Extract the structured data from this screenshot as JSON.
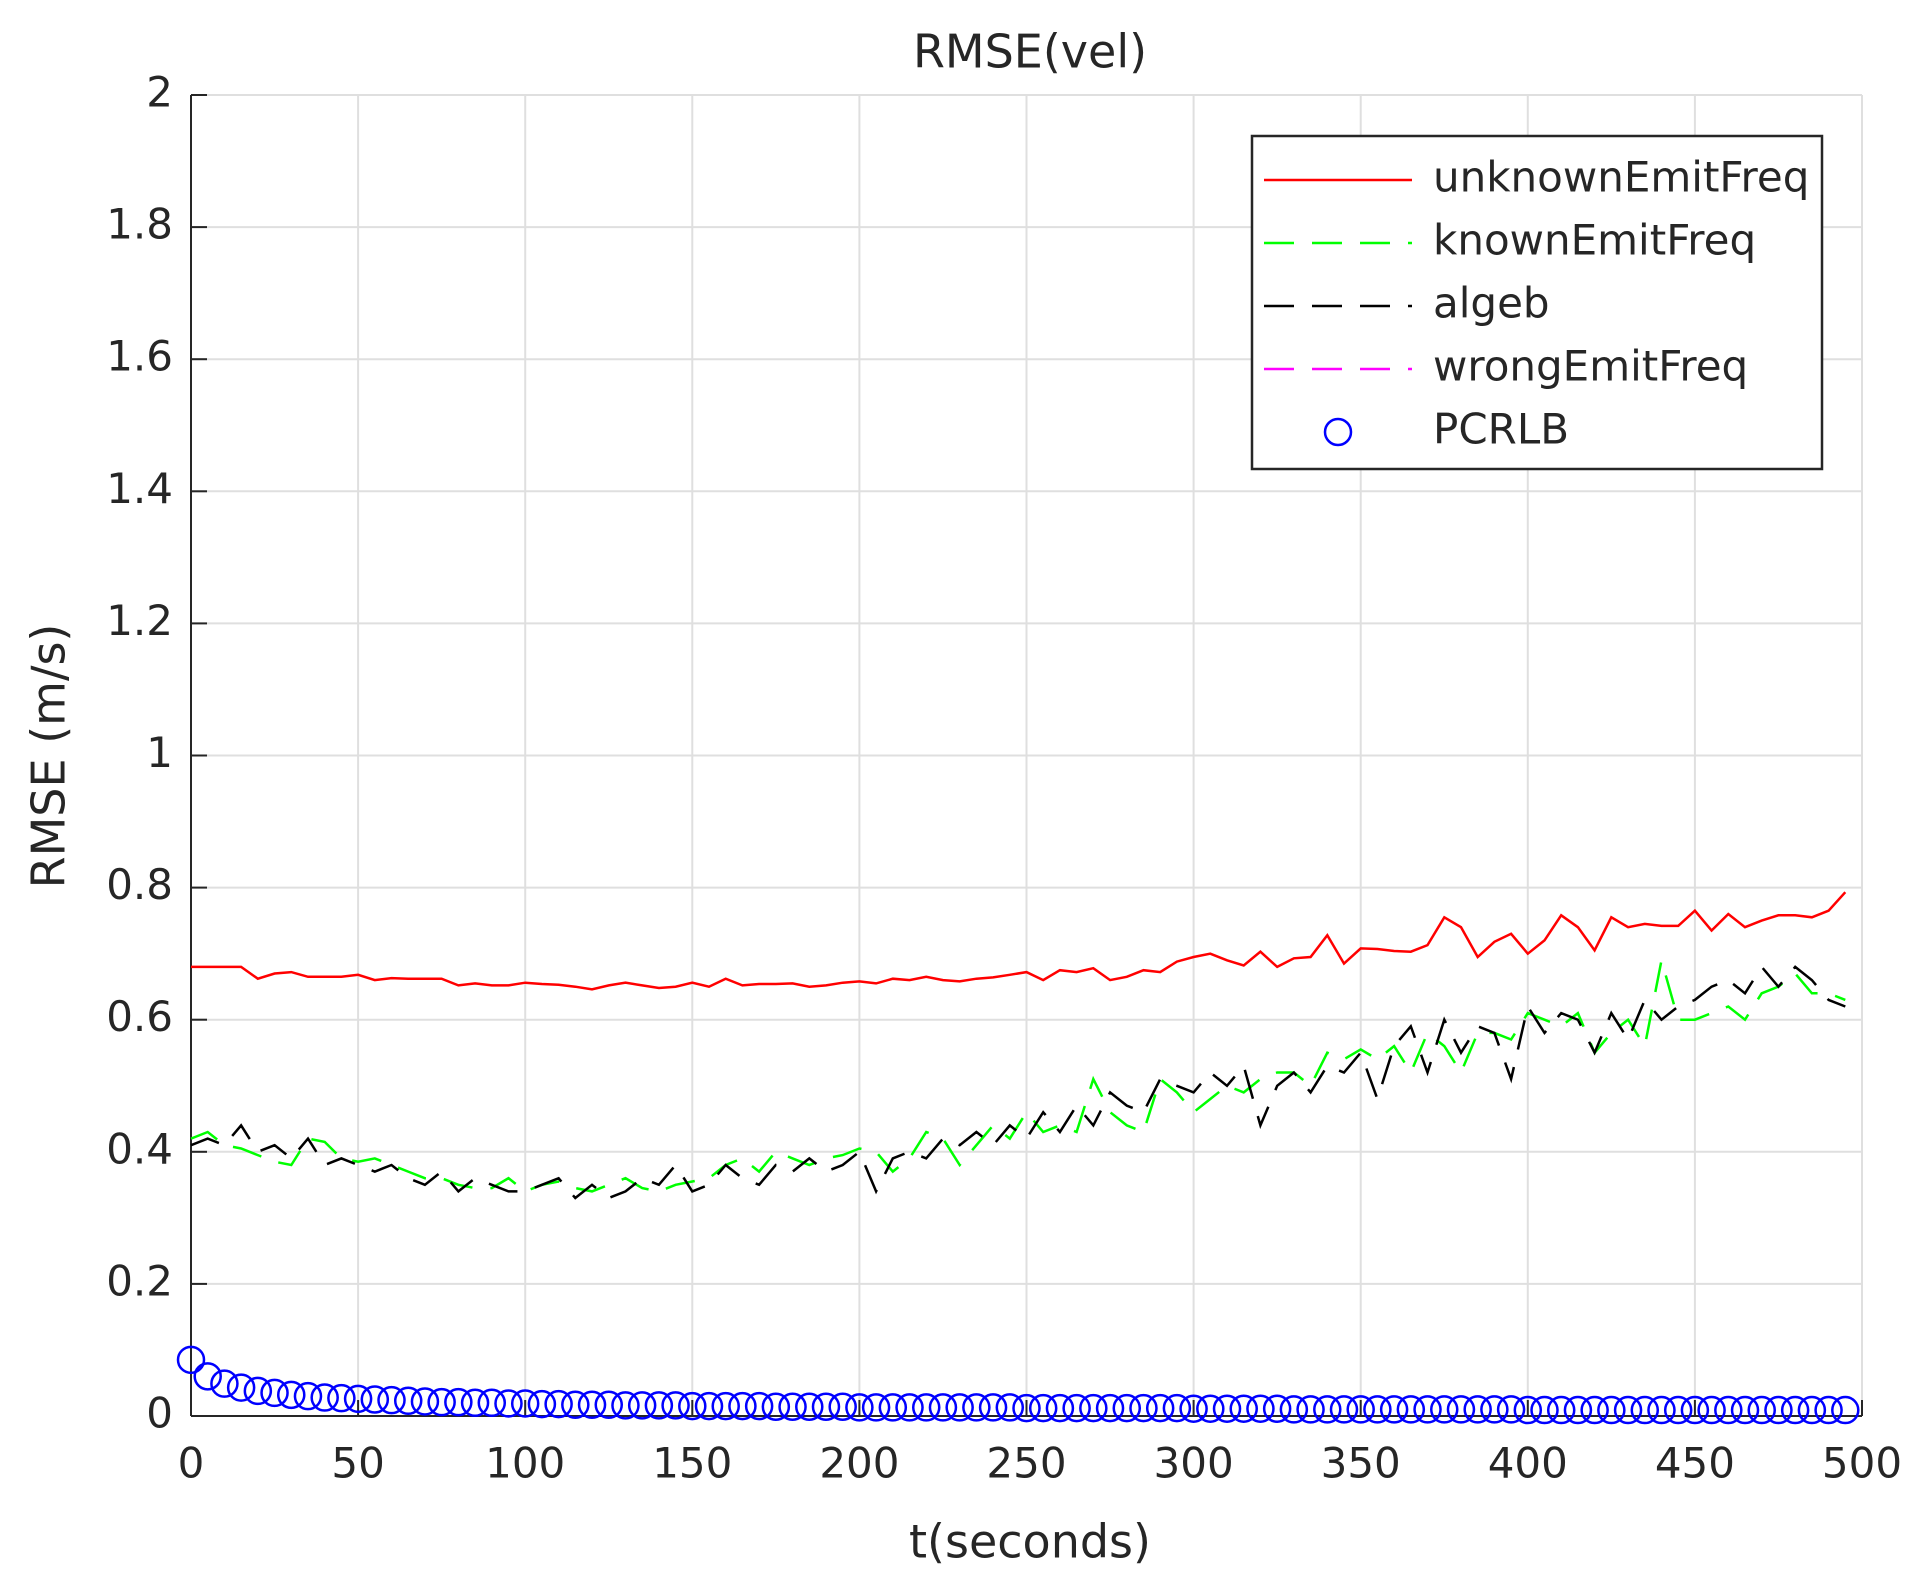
{
  "chart_data": {
    "type": "line",
    "title": "RMSE(vel)",
    "xlabel": "t(seconds)",
    "ylabel": "RMSE (m/s)",
    "x": [
      0,
      5,
      10,
      15,
      20,
      25,
      30,
      35,
      40,
      45,
      50,
      55,
      60,
      65,
      70,
      75,
      80,
      85,
      90,
      95,
      100,
      105,
      110,
      115,
      120,
      125,
      130,
      135,
      140,
      145,
      150,
      155,
      160,
      165,
      170,
      175,
      180,
      185,
      190,
      195,
      200,
      205,
      210,
      215,
      220,
      225,
      230,
      235,
      240,
      245,
      250,
      255,
      260,
      265,
      270,
      275,
      280,
      285,
      290,
      295,
      300,
      305,
      310,
      315,
      320,
      325,
      330,
      335,
      340,
      345,
      350,
      355,
      360,
      365,
      370,
      375,
      380,
      385,
      390,
      395,
      400,
      405,
      410,
      415,
      420,
      425,
      430,
      435,
      440,
      445,
      450,
      455,
      460,
      465,
      470,
      475,
      480,
      485,
      490,
      495
    ],
    "series": [
      {
        "name": "unknownEmitFreq",
        "color": "#ff0000",
        "linestyle": "solid",
        "values": [
          0.68,
          0.68,
          0.68,
          0.68,
          0.662,
          0.67,
          0.672,
          0.665,
          0.665,
          0.665,
          0.668,
          0.66,
          0.663,
          0.662,
          0.662,
          0.662,
          0.652,
          0.655,
          0.652,
          0.652,
          0.656,
          0.654,
          0.653,
          0.65,
          0.646,
          0.652,
          0.656,
          0.652,
          0.648,
          0.65,
          0.656,
          0.65,
          0.662,
          0.652,
          0.654,
          0.654,
          0.655,
          0.65,
          0.652,
          0.656,
          0.658,
          0.655,
          0.662,
          0.66,
          0.665,
          0.66,
          0.658,
          0.662,
          0.664,
          0.668,
          0.672,
          0.66,
          0.675,
          0.672,
          0.678,
          0.66,
          0.665,
          0.675,
          0.672,
          0.688,
          0.695,
          0.7,
          0.69,
          0.682,
          0.703,
          0.68,
          0.693,
          0.695,
          0.728,
          0.685,
          0.708,
          0.707,
          0.704,
          0.703,
          0.713,
          0.755,
          0.74,
          0.695,
          0.718,
          0.73,
          0.7,
          0.72,
          0.758,
          0.74,
          0.705,
          0.755,
          0.74,
          0.745,
          0.742,
          0.742,
          0.765,
          0.735,
          0.76,
          0.74,
          0.75,
          0.758,
          0.758,
          0.755,
          0.765,
          0.793
        ]
      },
      {
        "name": "knownEmitFreq",
        "color": "#00ff00",
        "linestyle": "dashed",
        "values": [
          0.42,
          0.43,
          0.41,
          0.405,
          0.395,
          0.385,
          0.38,
          0.42,
          0.415,
          0.39,
          0.385,
          0.39,
          0.38,
          0.37,
          0.36,
          0.36,
          0.35,
          0.345,
          0.345,
          0.36,
          0.34,
          0.35,
          0.355,
          0.345,
          0.34,
          0.35,
          0.36,
          0.345,
          0.34,
          0.35,
          0.355,
          0.36,
          0.38,
          0.39,
          0.37,
          0.4,
          0.39,
          0.38,
          0.39,
          0.395,
          0.405,
          0.4,
          0.37,
          0.39,
          0.43,
          0.42,
          0.38,
          0.41,
          0.44,
          0.42,
          0.46,
          0.43,
          0.44,
          0.43,
          0.51,
          0.46,
          0.44,
          0.43,
          0.51,
          0.49,
          0.46,
          0.48,
          0.5,
          0.49,
          0.51,
          0.52,
          0.52,
          0.5,
          0.55,
          0.54,
          0.555,
          0.54,
          0.56,
          0.52,
          0.58,
          0.56,
          0.52,
          0.58,
          0.58,
          0.57,
          0.61,
          0.6,
          0.59,
          0.61,
          0.55,
          0.58,
          0.6,
          0.56,
          0.69,
          0.6,
          0.6,
          0.61,
          0.62,
          0.6,
          0.64,
          0.65,
          0.67,
          0.64,
          0.64,
          0.63
        ]
      },
      {
        "name": "algeb",
        "color": "#000000",
        "linestyle": "dashed",
        "values": [
          0.41,
          0.42,
          0.41,
          0.44,
          0.4,
          0.41,
          0.39,
          0.42,
          0.38,
          0.39,
          0.38,
          0.37,
          0.38,
          0.36,
          0.35,
          0.37,
          0.34,
          0.36,
          0.35,
          0.34,
          0.34,
          0.35,
          0.36,
          0.33,
          0.35,
          0.33,
          0.34,
          0.36,
          0.35,
          0.38,
          0.34,
          0.35,
          0.38,
          0.36,
          0.35,
          0.38,
          0.37,
          0.39,
          0.37,
          0.38,
          0.4,
          0.34,
          0.39,
          0.4,
          0.39,
          0.42,
          0.41,
          0.43,
          0.41,
          0.44,
          0.42,
          0.46,
          0.43,
          0.47,
          0.44,
          0.49,
          0.47,
          0.46,
          0.51,
          0.5,
          0.49,
          0.52,
          0.5,
          0.53,
          0.44,
          0.5,
          0.52,
          0.49,
          0.53,
          0.52,
          0.55,
          0.48,
          0.56,
          0.59,
          0.52,
          0.6,
          0.55,
          0.59,
          0.58,
          0.51,
          0.62,
          0.58,
          0.61,
          0.6,
          0.55,
          0.61,
          0.57,
          0.63,
          0.6,
          0.62,
          0.63,
          0.65,
          0.66,
          0.64,
          0.68,
          0.65,
          0.68,
          0.66,
          0.63,
          0.62
        ]
      },
      {
        "name": "wrongEmitFreq",
        "color": "#ff00ff",
        "linestyle": "dashed",
        "values": [
          null,
          null,
          null,
          null,
          null,
          null,
          null,
          null,
          null,
          null,
          null,
          null,
          null,
          null,
          null,
          null,
          null,
          null,
          null,
          null,
          null,
          null,
          null,
          null,
          null,
          null,
          null,
          null,
          null,
          null,
          null,
          null,
          null,
          null,
          null,
          null,
          null,
          null,
          null,
          null,
          null,
          null,
          null,
          null,
          null,
          null,
          null,
          null,
          null,
          null,
          null,
          null,
          null,
          null,
          null,
          null,
          null,
          null,
          null,
          null,
          null,
          null,
          null,
          null,
          null,
          null,
          null,
          null,
          null,
          null,
          null,
          null,
          null,
          null,
          null,
          null,
          null,
          null,
          null,
          null,
          null,
          null,
          null,
          null,
          null,
          null,
          null,
          null,
          null,
          null,
          null,
          null,
          null,
          null,
          null,
          null,
          null,
          null,
          null,
          null
        ]
      },
      {
        "name": "PCRLB",
        "color": "#0000ff",
        "linestyle": "none",
        "marker": "o",
        "values": [
          0.085,
          0.06,
          0.049,
          0.043,
          0.038,
          0.035,
          0.032,
          0.03,
          0.028,
          0.027,
          0.026,
          0.025,
          0.024,
          0.023,
          0.022,
          0.021,
          0.021,
          0.02,
          0.02,
          0.019,
          0.019,
          0.018,
          0.018,
          0.017,
          0.017,
          0.017,
          0.016,
          0.016,
          0.016,
          0.016,
          0.015,
          0.015,
          0.015,
          0.015,
          0.015,
          0.014,
          0.014,
          0.014,
          0.014,
          0.014,
          0.013,
          0.013,
          0.013,
          0.013,
          0.013,
          0.013,
          0.013,
          0.013,
          0.013,
          0.013,
          0.012,
          0.012,
          0.012,
          0.012,
          0.012,
          0.012,
          0.012,
          0.012,
          0.012,
          0.012,
          0.011,
          0.011,
          0.011,
          0.011,
          0.011,
          0.011,
          0.01,
          0.01,
          0.01,
          0.01,
          0.01,
          0.01,
          0.01,
          0.01,
          0.01,
          0.01,
          0.01,
          0.01,
          0.01,
          0.01,
          0.009,
          0.009,
          0.009,
          0.009,
          0.009,
          0.009,
          0.009,
          0.009,
          0.009,
          0.009,
          0.009,
          0.009,
          0.009,
          0.009,
          0.009,
          0.009,
          0.009,
          0.009,
          0.009,
          0.009
        ]
      }
    ],
    "xlim": [
      0,
      500
    ],
    "xticks": [
      0,
      50,
      100,
      150,
      200,
      250,
      300,
      350,
      400,
      450,
      500
    ],
    "ylim": [
      0,
      2
    ],
    "yticks": [
      0,
      0.2,
      0.4,
      0.6,
      0.8,
      1,
      1.2,
      1.4,
      1.6,
      1.8,
      2
    ],
    "grid": true,
    "legend": "northeast"
  }
}
